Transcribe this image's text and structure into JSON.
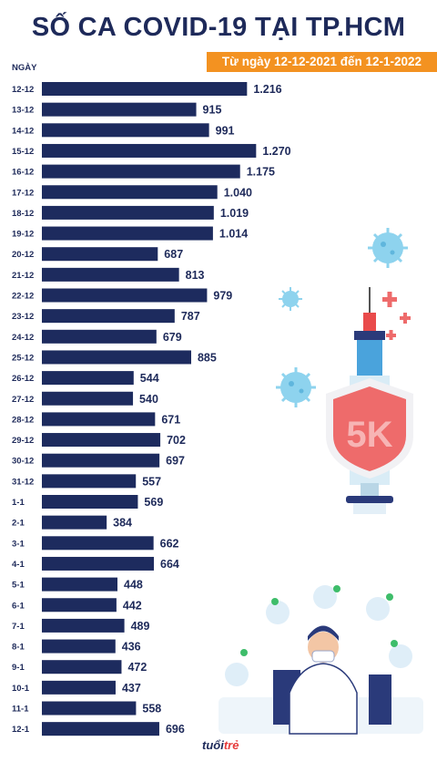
{
  "header": {
    "title": "SỐ CA COVID-19 TẠI TP.HCM",
    "subtitle": "Từ ngày 12-12-2021 đến 12-1-2022"
  },
  "logo": {
    "part1": "tuổi",
    "part2": "trẻ"
  },
  "illustration": {
    "shield_text": "5K"
  },
  "colors": {
    "bar": "#1d2b5e",
    "accent": "#f39221",
    "shield": "#ee6b6b",
    "virus": "#8ed3ee"
  },
  "chart_data": {
    "type": "bar",
    "orientation": "horizontal",
    "ylabel": "NGÀY",
    "categories": [
      "12-12",
      "13-12",
      "14-12",
      "15-12",
      "16-12",
      "17-12",
      "18-12",
      "19-12",
      "20-12",
      "21-12",
      "22-12",
      "23-12",
      "24-12",
      "25-12",
      "26-12",
      "27-12",
      "28-12",
      "29-12",
      "30-12",
      "31-12",
      "1-1",
      "2-1",
      "3-1",
      "4-1",
      "5-1",
      "6-1",
      "7-1",
      "8-1",
      "9-1",
      "10-1",
      "11-1",
      "12-1"
    ],
    "values": [
      1216,
      915,
      991,
      1270,
      1175,
      1040,
      1019,
      1014,
      687,
      813,
      979,
      787,
      679,
      885,
      544,
      540,
      671,
      702,
      697,
      557,
      569,
      384,
      662,
      664,
      448,
      442,
      489,
      436,
      472,
      437,
      558,
      696
    ],
    "value_labels": [
      "1.216",
      "915",
      "991",
      "1.270",
      "1.175",
      "1.040",
      "1.019",
      "1.014",
      "687",
      "813",
      "979",
      "787",
      "679",
      "885",
      "544",
      "540",
      "671",
      "702",
      "697",
      "557",
      "569",
      "384",
      "662",
      "664",
      "448",
      "442",
      "489",
      "436",
      "472",
      "437",
      "558",
      "696"
    ]
  }
}
